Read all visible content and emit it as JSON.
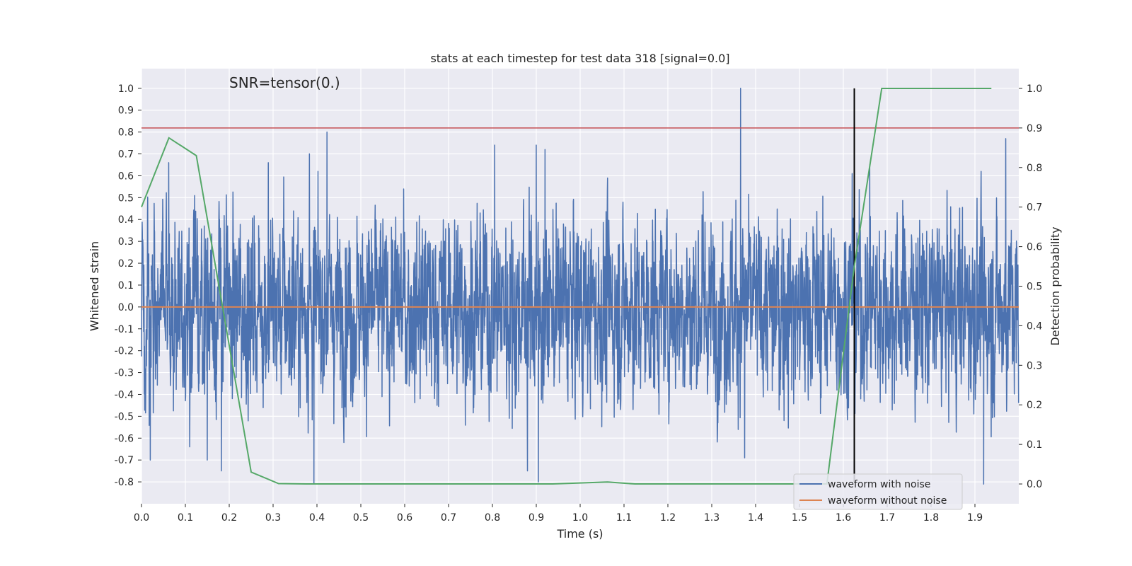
{
  "chart_data": {
    "type": "line",
    "title": "stats at each timestep for test data 318 [signal=0.0]",
    "xlabel": "Time (s)",
    "ylabel": "Whitened strain",
    "y2label": "Detection probability",
    "annotation": "SNR=tensor(0.)",
    "xlim": [
      0.0,
      2.0
    ],
    "ylim": [
      -0.9,
      1.09
    ],
    "y2lim": [
      -0.05,
      1.05
    ],
    "x_ticks": [
      "0.0",
      "0.1",
      "0.2",
      "0.3",
      "0.4",
      "0.5",
      "0.6",
      "0.7",
      "0.8",
      "0.9",
      "1.0",
      "1.1",
      "1.2",
      "1.3",
      "1.4",
      "1.5",
      "1.6",
      "1.7",
      "1.8",
      "1.9"
    ],
    "y_ticks": [
      "-0.8",
      "-0.7",
      "-0.6",
      "-0.5",
      "-0.4",
      "-0.3",
      "-0.2",
      "-0.1",
      "0.0",
      "0.1",
      "0.2",
      "0.3",
      "0.4",
      "0.5",
      "0.6",
      "0.7",
      "0.8",
      "0.9",
      "1.0"
    ],
    "y2_ticks": [
      "0.0",
      "0.1",
      "0.2",
      "0.3",
      "0.4",
      "0.5",
      "0.6",
      "0.7",
      "0.8",
      "0.9",
      "1.0"
    ],
    "grid": true,
    "legend_position": "lower-right",
    "series": [
      {
        "name": "waveform with noise",
        "axis": "left",
        "color": "#4c72b0",
        "sample_rate": 2048,
        "noise_std": 0.21,
        "peaks": [
          {
            "x": 1.3655,
            "y": 1.0
          },
          {
            "x": 0.423,
            "y": 0.8
          },
          {
            "x": 0.805,
            "y": 0.74
          },
          {
            "x": 0.9,
            "y": 0.74
          },
          {
            "x": 1.97,
            "y": 0.77
          },
          {
            "x": 0.383,
            "y": 0.7
          },
          {
            "x": 0.92,
            "y": 0.72
          },
          {
            "x": 0.289,
            "y": 0.66
          },
          {
            "x": 0.062,
            "y": 0.66
          },
          {
            "x": 0.393,
            "y": -0.81
          },
          {
            "x": 0.905,
            "y": -0.8
          },
          {
            "x": 1.92,
            "y": -0.81
          },
          {
            "x": 0.02,
            "y": -0.7
          },
          {
            "x": 0.182,
            "y": -0.75
          },
          {
            "x": 1.375,
            "y": -0.69
          },
          {
            "x": 0.11,
            "y": -0.64
          },
          {
            "x": 0.88,
            "y": -0.75
          },
          {
            "x": 0.15,
            "y": -0.7
          },
          {
            "x": 1.62,
            "y": 0.61
          },
          {
            "x": 1.66,
            "y": 0.65
          }
        ]
      },
      {
        "name": "waveform without noise",
        "axis": "left",
        "color": "#dd8452",
        "x": [
          0.0,
          2.0
        ],
        "y": [
          0.0,
          0.0
        ]
      },
      {
        "name": "",
        "axis": "right",
        "color": "#55a868",
        "x": [
          0.0,
          0.0625,
          0.125,
          0.25,
          0.3125,
          0.375,
          0.5,
          0.625,
          0.75,
          0.875,
          0.9375,
          1.0625,
          1.125,
          1.25,
          1.375,
          1.5,
          1.5625,
          1.625,
          1.6875,
          1.75,
          1.875,
          1.9375
        ],
        "y": [
          0.7,
          0.875,
          0.83,
          0.03,
          0.001,
          0.0,
          0.0,
          0.0,
          0.0,
          0.0,
          0.0,
          0.005,
          0.0,
          0.0,
          0.0,
          0.0,
          0.0,
          0.55,
          1.0,
          1.0,
          1.0,
          1.0
        ]
      }
    ],
    "reference_lines": [
      {
        "orientation": "horizontal",
        "axis": "right",
        "value": 0.9,
        "color": "#c44e52"
      },
      {
        "orientation": "vertical",
        "axis": "left",
        "x": 1.625,
        "y_range": [
          -0.8,
          1.0
        ],
        "color": "#000000"
      }
    ],
    "colors": {
      "plot_background": "#eaeaf2",
      "grid": "#ffffff"
    }
  }
}
